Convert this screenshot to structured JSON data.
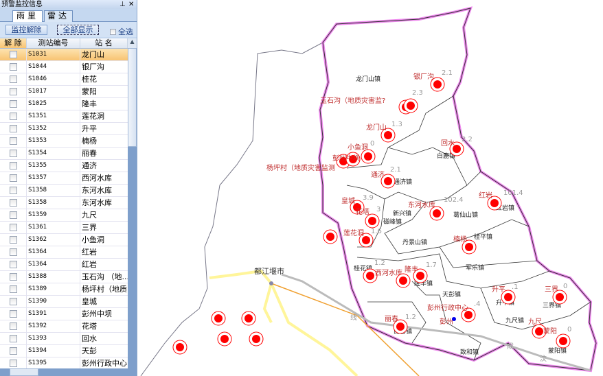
{
  "panel": {
    "title": "预警监控信息",
    "pin_icon": "pin",
    "close_icon": "close"
  },
  "tabs": [
    {
      "label": "雨里",
      "active": true
    },
    {
      "label": "雷达",
      "active": false
    }
  ],
  "toolbar": {
    "release_label": "监控解除",
    "show_all_label": "全部显示",
    "select_all_label": "全选"
  },
  "table": {
    "columns": [
      "解 除",
      "测站编号",
      "站 名"
    ],
    "rows": [
      {
        "id": "S1031",
        "name": "龙门山",
        "selected": true
      },
      {
        "id": "S1044",
        "name": "银厂沟"
      },
      {
        "id": "S1046",
        "name": "桂花"
      },
      {
        "id": "S1017",
        "name": "蒙阳"
      },
      {
        "id": "S1025",
        "name": "隆丰"
      },
      {
        "id": "S1351",
        "name": "莲花洞"
      },
      {
        "id": "S1352",
        "name": "升平"
      },
      {
        "id": "S1353",
        "name": "楠杨"
      },
      {
        "id": "S1354",
        "name": "丽春"
      },
      {
        "id": "S1355",
        "name": "通济"
      },
      {
        "id": "S1357",
        "name": "西河水库"
      },
      {
        "id": "S1358",
        "name": "东河水库"
      },
      {
        "id": "S1358",
        "name": "东河水库"
      },
      {
        "id": "S1359",
        "name": "九尺"
      },
      {
        "id": "S1361",
        "name": "三界"
      },
      {
        "id": "S1362",
        "name": "小鱼洞"
      },
      {
        "id": "S1364",
        "name": "红岩"
      },
      {
        "id": "S1364",
        "name": "红岩"
      },
      {
        "id": "S1388",
        "name": "玉石沟 （地..."
      },
      {
        "id": "S1389",
        "name": "杨坪村（地质..."
      },
      {
        "id": "S1390",
        "name": "皇城"
      },
      {
        "id": "S1391",
        "name": "彭州中坝"
      },
      {
        "id": "S1392",
        "name": "花塔"
      },
      {
        "id": "S1393",
        "name": "回水"
      },
      {
        "id": "S1394",
        "name": "天彭"
      },
      {
        "id": "S1395",
        "name": "彭州行政中心"
      }
    ]
  },
  "map": {
    "colors": {
      "marker": "#ff0000",
      "boundary": "#ee88ee",
      "label": "#c03030",
      "road": "#fff59a"
    },
    "city_label": "都江堰市",
    "road_labels": [
      "线",
      "成",
      "汶"
    ],
    "stations": [
      {
        "name": "银厂沟",
        "value": "2.1"
      },
      {
        "name": "玉石沟（地质灾害监?",
        "value": "2.3"
      },
      {
        "name": "龙门山",
        "value": "1.3"
      },
      {
        "name": "回水",
        "value": "2.2"
      },
      {
        "name": "小鱼洞",
        "value": "0"
      },
      {
        "name": "杨坪村（地质灾害监测",
        "value": ""
      },
      {
        "name": "彭州中坝",
        "value": ""
      },
      {
        "name": "通济",
        "value": "2.1"
      },
      {
        "name": "皇城",
        "value": "3.9"
      },
      {
        "name": "花塔",
        "value": "3"
      },
      {
        "name": "莲花洞",
        "value": "1.6"
      },
      {
        "name": "东河水库",
        "value": "102.4"
      },
      {
        "name": "红岩",
        "value": "101.4"
      },
      {
        "name": "楠杨",
        "value": ""
      },
      {
        "name": "西河水库",
        "value": "1.2"
      },
      {
        "name": "隆丰",
        "value": "1.7"
      },
      {
        "name": "升平",
        "value": ".1"
      },
      {
        "name": "三界",
        "value": "0"
      },
      {
        "name": "彭州行政中心",
        "value": ".4"
      },
      {
        "name": "丽春",
        "value": "1.2"
      },
      {
        "name": "九尺",
        "value": ""
      },
      {
        "name": "蒙阳",
        "value": "0"
      },
      {
        "name": "彭州",
        "value": ""
      }
    ],
    "towns": [
      "龙门山镇",
      "白鹿镇",
      "通济镇",
      "磁峰镇",
      "新兴镇",
      "葛仙山镇",
      "红岩镇",
      "丹景山镇",
      "桂平镇",
      "军乐镇",
      "隆丰镇",
      "桂花镇",
      "天彭镇",
      "升平镇",
      "三界镇",
      "九尺镇",
      "丽春镇",
      "致和镇",
      "蒙阳镇"
    ]
  }
}
